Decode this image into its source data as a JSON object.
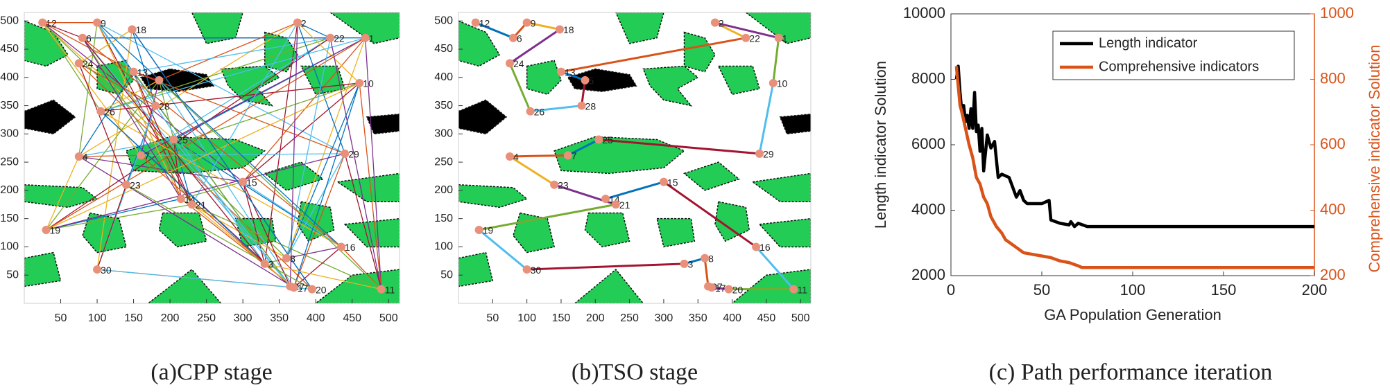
{
  "chart_data": [
    {
      "type": "map",
      "caption": "(a)CPP stage",
      "labels": [
        "12",
        "9",
        "18",
        "2",
        "22",
        "1",
        "6",
        "24",
        "13",
        "5",
        "10",
        "26",
        "28",
        "25",
        "4",
        "29",
        "7",
        "23",
        "15",
        "14",
        "21",
        "19",
        "30",
        "8",
        "16",
        "27",
        "17",
        "20",
        "11",
        "3"
      ],
      "x": [
        25,
        100,
        148,
        375,
        420,
        468,
        80,
        75,
        150,
        185,
        460,
        105,
        180,
        205,
        75,
        440,
        160,
        140,
        300,
        215,
        230,
        30,
        100,
        360,
        435,
        365,
        370,
        395,
        490,
        330
      ],
      "y": [
        497,
        497,
        485,
        497,
        470,
        470,
        470,
        425,
        410,
        395,
        390,
        340,
        350,
        290,
        260,
        265,
        262,
        210,
        215,
        185,
        175,
        130,
        60,
        80,
        100,
        30,
        28,
        25,
        25,
        70
      ],
      "xlim": [
        0,
        515
      ],
      "ylim": [
        0,
        515
      ],
      "xticks": [
        50,
        100,
        150,
        200,
        250,
        300,
        350,
        400,
        450,
        500
      ],
      "yticks": [
        50,
        100,
        150,
        200,
        250,
        300,
        350,
        400,
        450,
        500
      ],
      "marker_color": "#e8907a",
      "colors": [
        "#0072bd",
        "#d95319",
        "#edb120",
        "#7e2f8e",
        "#77ac30",
        "#4dbeee",
        "#a2142f"
      ]
    },
    {
      "type": "map",
      "caption": "(b)TSO stage",
      "labels": [
        "12",
        "9",
        "18",
        "2",
        "22",
        "1",
        "6",
        "24",
        "13",
        "5",
        "10",
        "26",
        "28",
        "25",
        "4",
        "29",
        "7",
        "23",
        "15",
        "14",
        "21",
        "19",
        "30",
        "8",
        "16",
        "27",
        "17",
        "20",
        "11",
        "3"
      ],
      "x": [
        25,
        100,
        148,
        375,
        420,
        468,
        80,
        75,
        150,
        185,
        460,
        105,
        180,
        205,
        75,
        440,
        160,
        140,
        300,
        215,
        230,
        30,
        100,
        360,
        435,
        365,
        370,
        395,
        490,
        330
      ],
      "y": [
        497,
        497,
        485,
        497,
        470,
        470,
        470,
        425,
        410,
        395,
        390,
        340,
        350,
        290,
        260,
        265,
        262,
        210,
        215,
        185,
        175,
        130,
        60,
        80,
        100,
        30,
        28,
        25,
        25,
        70
      ],
      "route": [
        0,
        6,
        1,
        2,
        7,
        11,
        12,
        9,
        8,
        4,
        3,
        5,
        10,
        15,
        13,
        16,
        14,
        17,
        20,
        21,
        22,
        29,
        23,
        25,
        26,
        27,
        28,
        24,
        18,
        19
      ],
      "xlim": [
        0,
        515
      ],
      "ylim": [
        0,
        515
      ],
      "xticks": [
        50,
        100,
        150,
        200,
        250,
        300,
        350,
        400,
        450,
        500
      ],
      "yticks": [
        50,
        100,
        150,
        200,
        250,
        300,
        350,
        400,
        450,
        500
      ],
      "marker_color": "#e8907a",
      "colors": [
        "#0072bd",
        "#d95319",
        "#edb120",
        "#7e2f8e",
        "#77ac30",
        "#4dbeee",
        "#a2142f"
      ]
    },
    {
      "type": "line",
      "caption": "(c) Path performance iteration",
      "xlabel": "GA Population Generation",
      "ylabel": "Length indicator Solution",
      "y2label": "Comprehensive indicator Solution",
      "xlim": [
        0,
        200
      ],
      "xticks": [
        0,
        50,
        100,
        150,
        200
      ],
      "ylim": [
        2000,
        10000
      ],
      "yticks": [
        2000,
        4000,
        6000,
        8000,
        10000
      ],
      "y2lim": [
        200,
        1000
      ],
      "y2ticks": [
        200,
        400,
        600,
        800,
        1000
      ],
      "y2color": "#d95319",
      "legend": "upper right",
      "series": [
        {
          "name": "Length indicator",
          "color": "#000000",
          "x": [
            3,
            4,
            5,
            6,
            7,
            8,
            9,
            10,
            11,
            12,
            13,
            14,
            15,
            16,
            17,
            18,
            20,
            22,
            24,
            26,
            28,
            32,
            36,
            38,
            40,
            42,
            50,
            54,
            55,
            60,
            65,
            66,
            68,
            70,
            75,
            200
          ],
          "values": [
            8000,
            8400,
            7600,
            7000,
            7200,
            6700,
            6900,
            6500,
            7100,
            6500,
            7600,
            6400,
            6600,
            5800,
            6500,
            5200,
            6300,
            5900,
            6100,
            5000,
            5100,
            5000,
            4400,
            4600,
            4300,
            4200,
            4200,
            4300,
            3700,
            3600,
            3550,
            3650,
            3500,
            3600,
            3500,
            3500
          ]
        },
        {
          "name": "Comprehensive indicators",
          "color": "#d95319",
          "axis": "y2",
          "x": [
            3,
            4,
            5,
            6,
            8,
            10,
            12,
            14,
            16,
            18,
            20,
            22,
            25,
            28,
            30,
            35,
            40,
            45,
            50,
            55,
            60,
            65,
            70,
            72,
            75,
            200
          ],
          "values": [
            840,
            780,
            720,
            700,
            650,
            600,
            560,
            500,
            480,
            440,
            420,
            380,
            350,
            330,
            310,
            290,
            270,
            265,
            260,
            255,
            245,
            240,
            230,
            225,
            225,
            225
          ]
        }
      ]
    }
  ]
}
